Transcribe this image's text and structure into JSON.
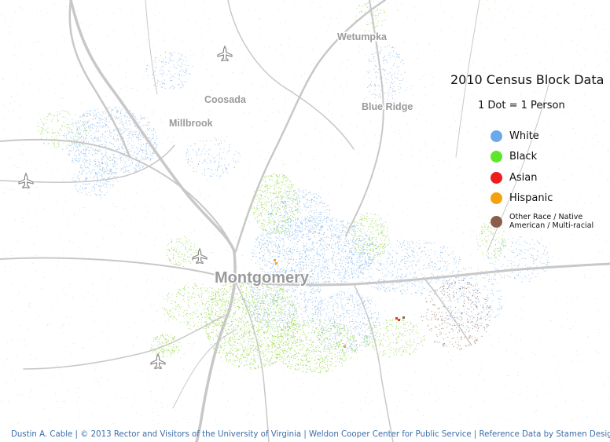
{
  "map": {
    "places": [
      {
        "name": "Wetumpka",
        "size": "small"
      },
      {
        "name": "Coosada",
        "size": "small"
      },
      {
        "name": "Millbrook",
        "size": "small"
      },
      {
        "name": "Blue Ridge",
        "size": "small"
      },
      {
        "name": "Montgomery",
        "size": "large"
      }
    ],
    "airport_icons": [
      "airplane-icon",
      "airplane-icon",
      "airplane-icon",
      "airplane-icon"
    ],
    "dot_colors": {
      "White": "#7fb2ea",
      "Black": "#8fd43c",
      "Asian": "#e53a2a",
      "Hispanic": "#f2a12a",
      "Other": "#8a6650"
    },
    "road_color": "#c8c8c8"
  },
  "legend": {
    "title": "2010 Census Block Data",
    "subtitle": "1 Dot = 1 Person",
    "items": [
      {
        "label": "White",
        "color": "#6aa9ea"
      },
      {
        "label": "Black",
        "color": "#5ee62a"
      },
      {
        "label": "Asian",
        "color": "#ee1c1c"
      },
      {
        "label": "Hispanic",
        "color": "#f5a10d"
      },
      {
        "label": "Other Race / Native American / Multi-racial",
        "color": "#8a5e4a"
      }
    ]
  },
  "attribution": "Dustin A. Cable | © 2013 Rector and Visitors of the University of Virginia | Weldon Cooper Center for Public Service | Reference Data by Stamen Design"
}
